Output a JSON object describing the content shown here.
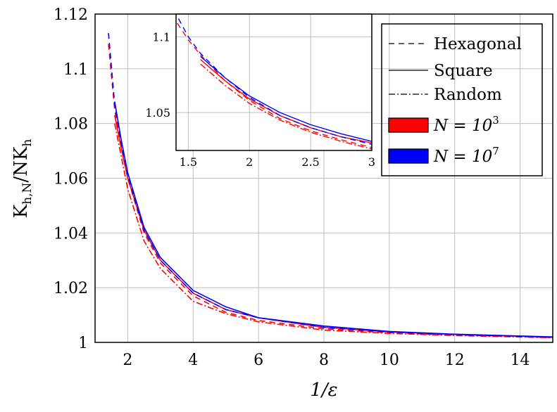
{
  "chart_data": [
    {
      "type": "line",
      "panel": "main",
      "xlabel": "1/ε",
      "ylabel": "K_h,N / NK_h",
      "ylabel_parts": {
        "main1": "K",
        "sub1": "h,N",
        "slash": "/NK",
        "sub2": "h"
      },
      "xlim": [
        1,
        15
      ],
      "ylim": [
        1,
        1.12
      ],
      "xticks": [
        2,
        4,
        6,
        8,
        10,
        12,
        14
      ],
      "yticks": [
        1,
        1.02,
        1.04,
        1.06,
        1.08,
        1.1,
        1.12
      ],
      "xtick_labels": [
        "2",
        "4",
        "6",
        "8",
        "10",
        "12",
        "14"
      ],
      "ytick_labels": [
        "1",
        "1.02",
        "1.04",
        "1.06",
        "1.08",
        "1.1",
        "1.12"
      ],
      "grid": true,
      "legend_position": "top-right",
      "legend": [
        {
          "label": "Hexagonal",
          "kind": "line",
          "dash": "dashed"
        },
        {
          "label": "Square",
          "kind": "line",
          "dash": "solid"
        },
        {
          "label": "Random",
          "kind": "line",
          "dash": "dashdot"
        },
        {
          "label_base": "N = 10",
          "label_exp": "3",
          "kind": "box",
          "color": "#ff0000"
        },
        {
          "label_base": "N = 10",
          "label_exp": "7",
          "kind": "box",
          "color": "#0000ff"
        }
      ],
      "series": [
        {
          "lattice": "Hexagonal",
          "N": "10^3",
          "color": "#ff0000",
          "dash": "dashed",
          "x": [
            1.41,
            1.6,
            1.8,
            2,
            2.5,
            3,
            4,
            5,
            6,
            8,
            10,
            12,
            15
          ],
          "y": [
            1.109,
            1.085,
            1.072,
            1.06,
            1.04,
            1.029,
            1.017,
            1.011,
            1.008,
            1.005,
            1.0035,
            1.0027,
            1.0018
          ]
        },
        {
          "lattice": "Square",
          "N": "10^3",
          "color": "#ff0000",
          "dash": "solid",
          "x": [
            1.6,
            1.8,
            2,
            2.5,
            3,
            4,
            5,
            6,
            8,
            10,
            12,
            15
          ],
          "y": [
            1.083,
            1.071,
            1.06,
            1.041,
            1.03,
            1.018,
            1.012,
            1.009,
            1.0055,
            1.0038,
            1.0029,
            1.0019
          ]
        },
        {
          "lattice": "Random",
          "N": "10^3",
          "color": "#ff0000",
          "dash": "dashdot",
          "x": [
            1.6,
            1.8,
            2,
            2.5,
            3,
            4,
            5,
            6,
            8,
            10,
            12,
            15
          ],
          "y": [
            1.08,
            1.068,
            1.056,
            1.037,
            1.027,
            1.015,
            1.0105,
            1.0075,
            1.0045,
            1.0033,
            1.0025,
            1.0017
          ]
        },
        {
          "lattice": "Hexagonal",
          "N": "10^7",
          "color": "#0000ff",
          "dash": "dashed",
          "x": [
            1.41,
            1.6,
            1.8,
            2,
            2.5,
            3,
            4,
            5,
            6,
            8,
            10,
            12,
            15
          ],
          "y": [
            1.113,
            1.087,
            1.073,
            1.061,
            1.041,
            1.03,
            1.018,
            1.012,
            1.009,
            1.0055,
            1.0038,
            1.0029,
            1.0019
          ]
        },
        {
          "lattice": "Square",
          "N": "10^7",
          "color": "#0000ff",
          "dash": "solid",
          "x": [
            1.6,
            1.8,
            2,
            2.5,
            3,
            4,
            5,
            6,
            8,
            10,
            12,
            15
          ],
          "y": [
            1.088,
            1.074,
            1.062,
            1.042,
            1.031,
            1.019,
            1.013,
            1.009,
            1.006,
            1.004,
            1.003,
            1.002
          ]
        }
      ]
    },
    {
      "type": "line",
      "panel": "inset",
      "xlim": [
        1.4,
        3
      ],
      "ylim": [
        1.025,
        1.115
      ],
      "xticks": [
        1.5,
        2,
        2.5,
        3
      ],
      "yticks": [
        1.05,
        1.1
      ],
      "xtick_labels": [
        "1.5",
        "2",
        "2.5",
        "3"
      ],
      "ytick_labels": [
        "1.05",
        "1.1"
      ],
      "series": [
        {
          "lattice": "Hexagonal",
          "N": "10^3",
          "color": "#ff0000",
          "dash": "dashed",
          "x": [
            1.41,
            1.5,
            1.6,
            1.8,
            2,
            2.25,
            2.5,
            2.75,
            3
          ],
          "y": [
            1.109,
            1.098,
            1.088,
            1.071,
            1.058,
            1.046,
            1.038,
            1.032,
            1.027
          ]
        },
        {
          "lattice": "Square",
          "N": "10^3",
          "color": "#ff0000",
          "dash": "solid",
          "x": [
            1.6,
            1.8,
            2,
            2.25,
            2.5,
            2.75,
            3
          ],
          "y": [
            1.085,
            1.071,
            1.059,
            1.048,
            1.04,
            1.034,
            1.03
          ]
        },
        {
          "lattice": "Random",
          "N": "10^3",
          "color": "#ff0000",
          "dash": "dashdot",
          "x": [
            1.6,
            1.8,
            2,
            2.25,
            2.5,
            2.75,
            3
          ],
          "y": [
            1.082,
            1.068,
            1.056,
            1.045,
            1.037,
            1.031,
            1.026
          ]
        },
        {
          "lattice": "Hexagonal",
          "N": "10^7",
          "color": "#0000ff",
          "dash": "dashed",
          "x": [
            1.42,
            1.5,
            1.6,
            1.8,
            2,
            2.25,
            2.5,
            2.75,
            3
          ],
          "y": [
            1.112,
            1.1,
            1.089,
            1.073,
            1.06,
            1.048,
            1.04,
            1.034,
            1.029
          ]
        },
        {
          "lattice": "Square",
          "N": "10^7",
          "color": "#0000ff",
          "dash": "solid",
          "x": [
            1.6,
            1.8,
            2,
            2.25,
            2.5,
            2.75,
            3
          ],
          "y": [
            1.087,
            1.073,
            1.061,
            1.05,
            1.042,
            1.036,
            1.031
          ]
        }
      ]
    }
  ]
}
